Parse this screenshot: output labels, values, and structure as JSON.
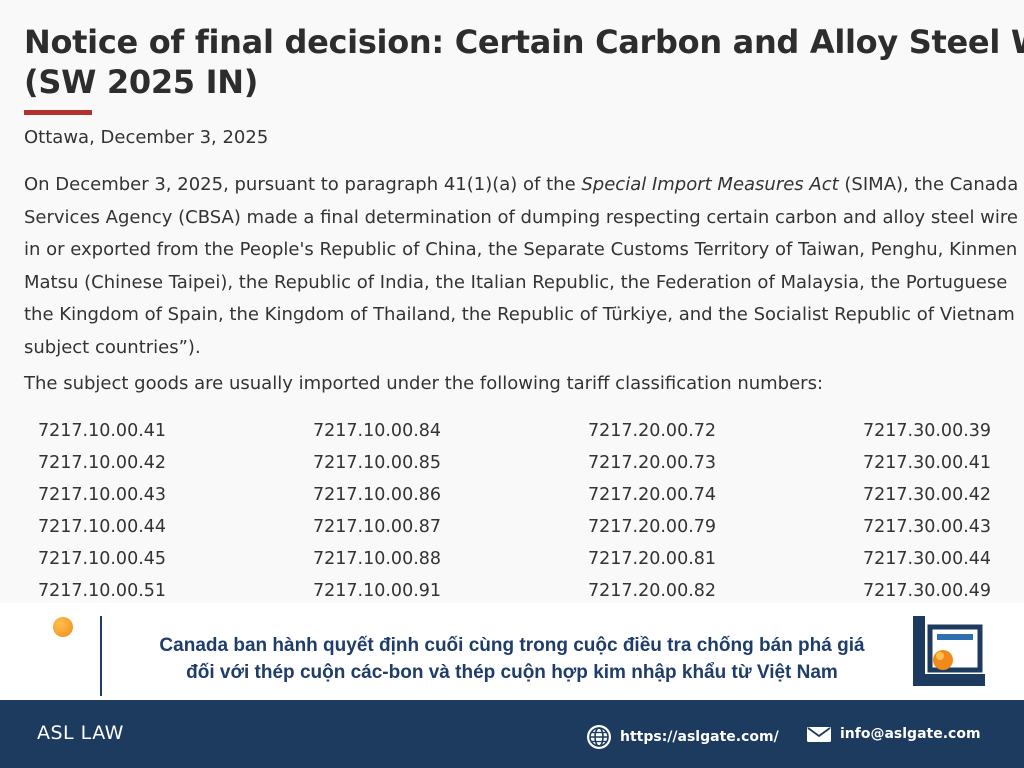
{
  "notice": {
    "title_line1": "Notice of final decision: Certain Carbon and Alloy Steel Wire",
    "title_line2": "(SW 2025 IN)",
    "dateline": "Ottawa, December 3, 2025",
    "para": {
      "l1a": "On December 3, 2025, pursuant to paragraph 41(1)(a) of the ",
      "l1_act": "Special Import Measures Act",
      "l1b": " (SIMA), the Canada Bo",
      "l2": "Services Agency (CBSA) made a final determination of dumping respecting certain carbon and alloy steel wire",
      "l3": "in or exported from the People's Republic of China, the Separate Customs Territory of Taiwan, Penghu, Kinmen",
      "l4": "Matsu (Chinese Taipei), the Republic of India, the Italian Republic, the Federation of Malaysia, the Portuguese",
      "l5": "the Kingdom of Spain, the Kingdom of Thailand, the Republic of Türkiye, and the Socialist Republic of Vietnam",
      "l6": "subject countries”)."
    },
    "tariff_intro": "The subject goods are usually imported under the following tariff classification numbers:",
    "tariff_rows": [
      [
        "7217.10.00.41",
        "7217.10.00.84",
        "7217.20.00.72",
        "7217.30.00.39"
      ],
      [
        "7217.10.00.42",
        "7217.10.00.85",
        "7217.20.00.73",
        "7217.30.00.41"
      ],
      [
        "7217.10.00.43",
        "7217.10.00.86",
        "7217.20.00.74",
        "7217.30.00.42"
      ],
      [
        "7217.10.00.44",
        "7217.10.00.87",
        "7217.20.00.79",
        "7217.30.00.43"
      ],
      [
        "7217.10.00.45",
        "7217.10.00.88",
        "7217.20.00.81",
        "7217.30.00.44"
      ],
      [
        "7217.10.00.51",
        "7217.10.00.91",
        "7217.20.00.82",
        "7217.30.00.49"
      ]
    ]
  },
  "banner": {
    "headline_line1": "Canada ban hành quyết định cuối cùng trong cuộc điều tra chống bán phá giá",
    "headline_line2": "đối với thép cuộn các-bon và thép cuộn hợp kim nhập khẩu từ Việt Nam"
  },
  "footer": {
    "brand": "ASL LAW",
    "website": "https://aslgate.com/",
    "email": "info@aslgate.com"
  },
  "icons": {
    "website": "globe-icon",
    "email": "envelope-icon",
    "logo": "asl-logo"
  },
  "colors": {
    "accent_red": "#b3322c",
    "navy": "#1d3a5f",
    "headline_blue": "#1f3d6b",
    "orange": "#f08a1a"
  }
}
